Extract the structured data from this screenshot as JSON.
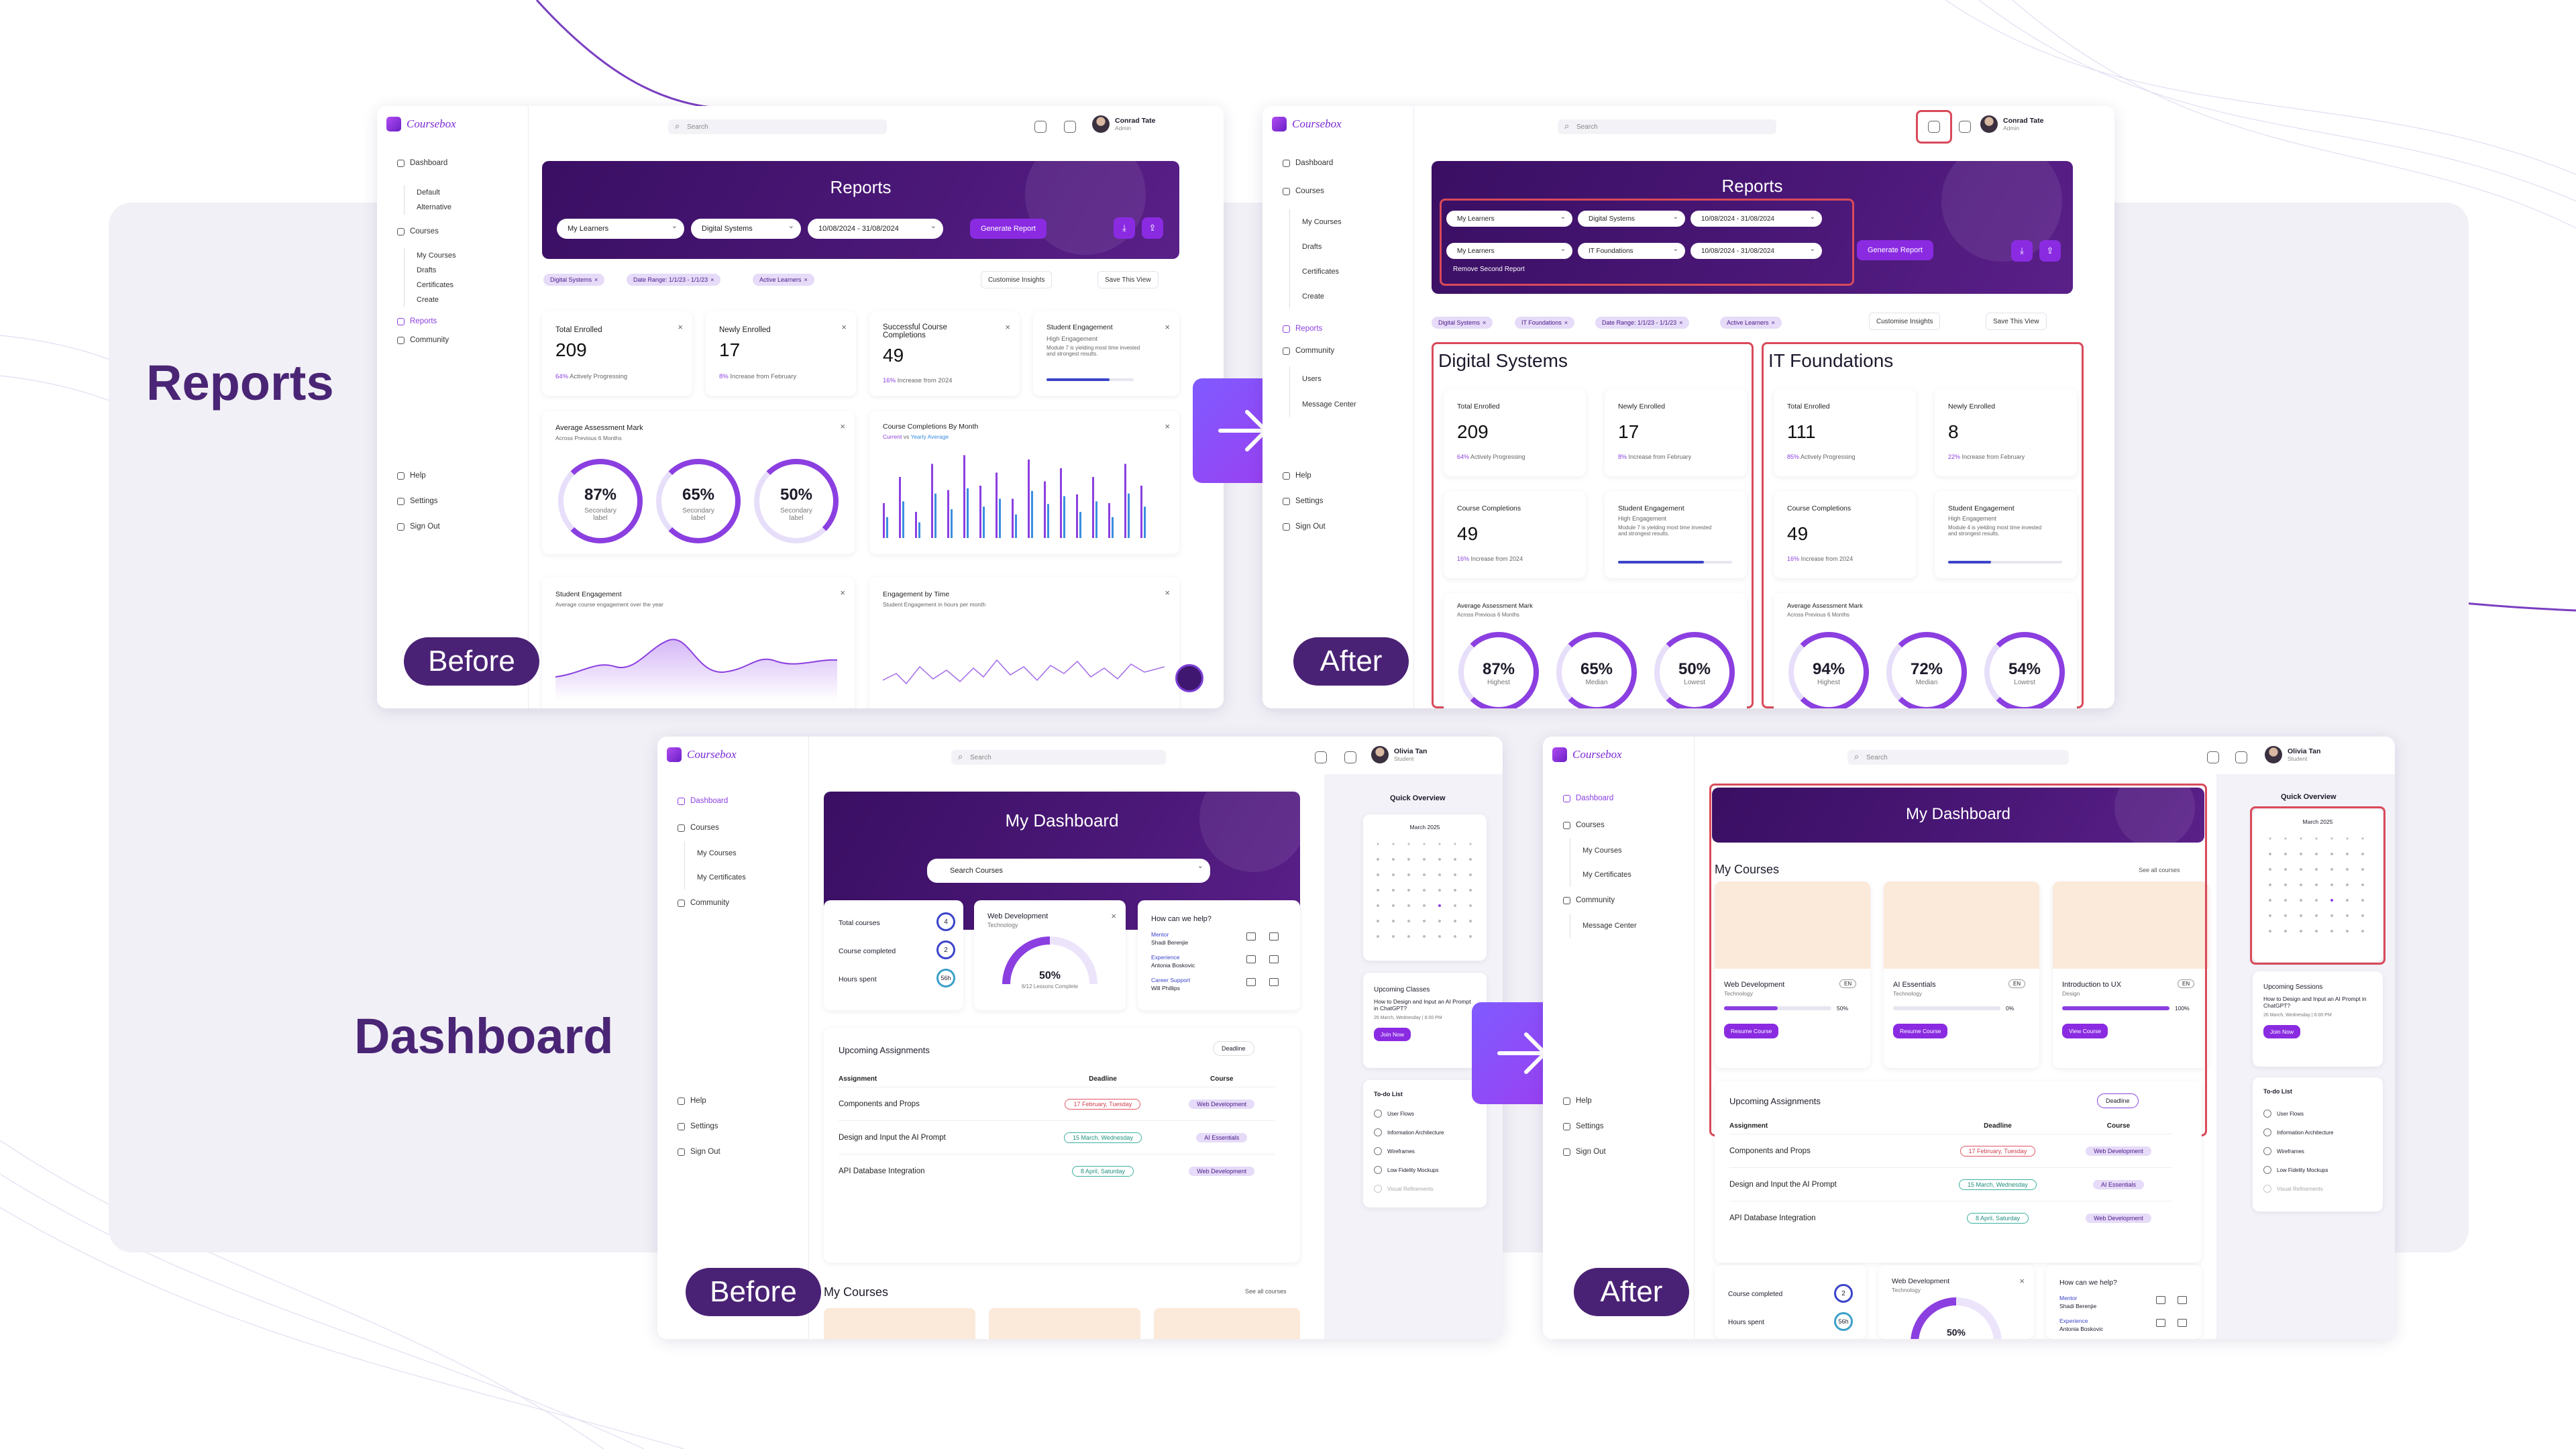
{
  "colors": {
    "brand": "#4a2575",
    "accent": "#8a2be2",
    "highlight": "#d94a5a",
    "band": "#f1f0f6"
  },
  "sections": {
    "reports": "Reports",
    "dashboard": "Dashboard"
  },
  "tags": {
    "before": "Before",
    "after": "After"
  },
  "common": {
    "logo": "Coursebox",
    "search": "Search",
    "admin_name": "Conrad Tate",
    "admin_role": "Admin",
    "student_name": "Olivia Tan",
    "student_role": "Student",
    "help": "Help",
    "settings": "Settings",
    "signout": "Sign Out"
  },
  "reports_before": {
    "nav": {
      "dashboard": "Dashboard",
      "default": "Default",
      "alternative": "Alternative",
      "courses": "Courses",
      "my_courses": "My Courses",
      "drafts": "Drafts",
      "certificates": "Certificates",
      "create": "Create",
      "reports": "Reports",
      "community": "Community"
    },
    "banner_title": "Reports",
    "filters": [
      "My Learners",
      "Digital Systems",
      "10/08/2024 - 31/08/2024"
    ],
    "generate": "Generate Report",
    "chips": [
      "Digital Systems",
      "Date Range: 1/1/23 - 1/1/23",
      "Active Learners"
    ],
    "customise": "Customise Insights",
    "save": "Save This View",
    "stats": [
      {
        "label": "Total Enrolled",
        "value": "209",
        "note_hi": "64%",
        "note": "Actively Progressing"
      },
      {
        "label": "Newly Enrolled",
        "value": "17",
        "note_hi": "8%",
        "note": "Increase from February"
      },
      {
        "label": "Successful Course Completions",
        "value": "49",
        "note_hi": "16%",
        "note": "Increase from 2024"
      },
      {
        "label": "Student Engagement",
        "value": "High Engagement",
        "note": "Module 7 is yielding most time invested and strongest results.",
        "progress": 0.72
      }
    ],
    "avg": {
      "title": "Average Assessment Mark",
      "sub": "Across Previous 6 Months",
      "rings": [
        {
          "v": "87%",
          "s": "Secondary label",
          "p": 0.87
        },
        {
          "v": "65%",
          "s": "Secondary label",
          "p": 0.65
        },
        {
          "v": "50%",
          "s": "Secondary label",
          "p": 0.5
        }
      ]
    },
    "completions": {
      "title": "Course Completions By Month",
      "legend_a": "Current",
      "legend_vs": "vs",
      "legend_b": "Yearly Average"
    },
    "engagement": {
      "title": "Student Engagement",
      "sub": "Average course engagement over the year"
    },
    "time": {
      "title": "Engagement by Time",
      "sub": "Student Engagement in hours per month"
    }
  },
  "reports_after": {
    "nav": {
      "dashboard": "Dashboard",
      "courses": "Courses",
      "my_courses": "My Courses",
      "drafts": "Drafts",
      "certificates": "Certificates",
      "create": "Create",
      "reports": "Reports",
      "community": "Community",
      "users": "Users",
      "message_center": "Message Center"
    },
    "banner_title": "Reports",
    "filters1": [
      "My Learners",
      "Digital Systems",
      "10/08/2024 - 31/08/2024"
    ],
    "filters2": [
      "My Learners",
      "IT Foundations",
      "10/08/2024 - 31/08/2024"
    ],
    "remove": "Remove Second Report",
    "generate": "Generate Report",
    "chips": [
      "Digital Systems",
      "IT Foundations",
      "Date Range: 1/1/23 - 1/1/23",
      "Active Learners"
    ],
    "customise": "Customise Insights",
    "save": "Save This View",
    "panels": [
      {
        "title": "Digital Systems",
        "enrolled": "209",
        "enrolled_hi": "64%",
        "enrolled_note": "Actively Progressing",
        "new": "17",
        "new_hi": "8%",
        "new_note": "Increase from February",
        "comp": "49",
        "comp_hi": "16%",
        "comp_note": "Increase from 2024",
        "eng": "High Engagement",
        "eng_note": "Module 7 is yielding most time invested and strongest results.",
        "rings": [
          {
            "v": "87%",
            "s": "Highest"
          },
          {
            "v": "65%",
            "s": "Median"
          },
          {
            "v": "50%",
            "s": "Lowest"
          }
        ]
      },
      {
        "title": "IT Foundations",
        "enrolled": "111",
        "enrolled_hi": "85%",
        "enrolled_note": "Actively Progressing",
        "new": "8",
        "new_hi": "22%",
        "new_note": "Increase from February",
        "comp": "49",
        "comp_hi": "16%",
        "comp_note": "Increase from 2024",
        "eng": "High Engagement",
        "eng_note": "Module 4 is yielding most time invested and strongest results.",
        "rings": [
          {
            "v": "94%",
            "s": "Highest"
          },
          {
            "v": "72%",
            "s": "Median"
          },
          {
            "v": "54%",
            "s": "Lowest"
          }
        ]
      }
    ],
    "labels": {
      "total": "Total Enrolled",
      "newly": "Newly Enrolled",
      "comp": "Course Completions",
      "eng": "Student Engagement",
      "avg": "Average Assessment Mark",
      "avg_sub": "Across Previous 6 Months"
    }
  },
  "dash_before": {
    "nav": {
      "dashboard": "Dashboard",
      "courses": "Courses",
      "my_courses": "My Courses",
      "my_certs": "My Certificates",
      "community": "Community"
    },
    "banner_title": "My Dashboard",
    "search_courses": "Search Courses",
    "stats": {
      "total": "Total courses",
      "total_v": "4",
      "completed": "Course completed",
      "completed_v": "2",
      "hours": "Hours spent",
      "hours_v": "56h"
    },
    "webdev": {
      "title": "Web Development",
      "sub": "Technology",
      "pct": "50%",
      "lessons": "6/12 Lessons Complete"
    },
    "help": {
      "title": "How can we help?",
      "mentor": "Mentor",
      "mentor_name": "Shadi Berenjie",
      "exp": "Experience",
      "exp_name": "Antonia Boskovic",
      "career": "Career Support",
      "career_name": "Will Phillips"
    },
    "quick": "Quick Overview",
    "month": "March 2025",
    "classes": {
      "title": "Upcoming Classes",
      "text": "How to Design and Input an AI Prompt in ChatGPT?",
      "date": "26 March, Wednesday | 6:00 PM",
      "join": "Join Now"
    },
    "todo": {
      "title": "To-do List",
      "items": [
        "User Flows",
        "Information Architecture",
        "Wireframes",
        "Low Fidelity Mockups",
        "Visual Refinements"
      ]
    },
    "assign": {
      "title": "Upcoming Assignments",
      "sort": "Deadline",
      "cols": [
        "Assignment",
        "Deadline",
        "Course"
      ],
      "rows": [
        [
          "Components and Props",
          "17 February, Tuesday",
          "Web Development"
        ],
        [
          "Design and Input the AI Prompt",
          "15 March, Wednesday",
          "AI Essentials"
        ],
        [
          "API Database Integration",
          "8 April, Saturday",
          "Web Development"
        ]
      ]
    },
    "mycourses": "My Courses",
    "see_all": "See all courses"
  },
  "dash_after": {
    "nav": {
      "dashboard": "Dashboard",
      "courses": "Courses",
      "my_courses": "My Courses",
      "my_certs": "My Certificates",
      "community": "Community",
      "message_center": "Message Center"
    },
    "banner_title": "My Dashboard",
    "mycourses": "My Courses",
    "see_all": "See all courses",
    "courses": [
      {
        "title": "Web Development",
        "sub": "Technology",
        "lvl": "EN",
        "pct": "50%",
        "p": 0.5,
        "btn": "Resume Course"
      },
      {
        "title": "AI Essentials",
        "sub": "Technology",
        "lvl": "EN",
        "pct": "0%",
        "p": 0.0,
        "btn": "Resume Course"
      },
      {
        "title": "Introduction to UX",
        "sub": "Design",
        "lvl": "EN",
        "pct": "100%",
        "p": 1.0,
        "btn": "View Course"
      }
    ],
    "assign": {
      "title": "Upcoming Assignments",
      "sort": "Deadline",
      "cols": [
        "Assignment",
        "Deadline",
        "Course"
      ],
      "rows": [
        [
          "Components and Props",
          "17 February, Tuesday",
          "Web Development"
        ],
        [
          "Design and Input the AI Prompt",
          "15 March, Wednesday",
          "AI Essentials"
        ],
        [
          "API Database Integration",
          "8 April, Saturday",
          "Web Development"
        ]
      ]
    },
    "quick": "Quick Overview",
    "month": "March 2025",
    "sessions": {
      "title": "Upcoming Sessions",
      "text": "How to Design and Input an AI Prompt in ChatGPT?",
      "date": "26 March, Wednesday | 6:00 PM",
      "join": "Join Now"
    },
    "todo": {
      "title": "To-do List",
      "items": [
        "User Flows",
        "Information Architecture",
        "Wireframes",
        "Low Fidelity Mockups",
        "Visual Refinements"
      ]
    },
    "stats": {
      "completed": "Course completed",
      "completed_v": "2",
      "hours": "Hours spent",
      "hours_v": "56h"
    },
    "webdev": {
      "title": "Web Development",
      "sub": "Technology",
      "pct": "50%"
    },
    "help": {
      "title": "How can we help?",
      "mentor": "Mentor",
      "mentor_name": "Shadi Berenjie",
      "exp": "Experience",
      "exp_name": "Antonia Boskovic"
    }
  }
}
